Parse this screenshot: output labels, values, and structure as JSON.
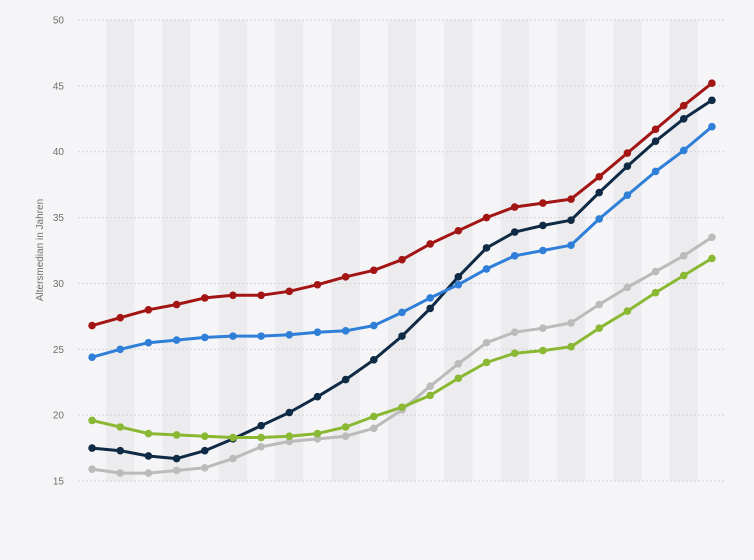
{
  "chart_data": {
    "type": "line",
    "title": "",
    "xlabel": "",
    "ylabel": "Altersmedian in Jahren",
    "ylim": [
      15,
      50
    ],
    "yticks": [
      15,
      20,
      25,
      30,
      35,
      40,
      45,
      50
    ],
    "x": [
      1,
      2,
      3,
      4,
      5,
      6,
      7,
      8,
      9,
      10,
      11,
      12,
      13,
      14,
      15,
      16,
      17,
      18,
      19,
      20,
      21,
      22,
      23
    ],
    "grid": true,
    "legend": "none",
    "series": [
      {
        "color": "#a31515",
        "values": [
          26.8,
          27.4,
          28.0,
          28.4,
          28.9,
          29.1,
          29.1,
          29.4,
          29.9,
          30.5,
          31.0,
          31.8,
          33.0,
          34.0,
          35.0,
          35.8,
          36.1,
          36.4,
          38.1,
          39.9,
          41.7,
          43.5,
          45.2
        ]
      },
      {
        "color": "#0f2a44",
        "values": [
          17.5,
          17.3,
          16.9,
          16.7,
          17.3,
          18.2,
          19.2,
          20.2,
          21.4,
          22.7,
          24.2,
          26.0,
          28.1,
          30.5,
          32.7,
          33.9,
          34.4,
          34.8,
          36.9,
          38.9,
          40.8,
          42.5,
          43.9
        ]
      },
      {
        "color": "#2f7fd9",
        "values": [
          24.4,
          25.0,
          25.5,
          25.7,
          25.9,
          26.0,
          26.0,
          26.1,
          26.3,
          26.4,
          26.8,
          27.8,
          28.9,
          29.9,
          31.1,
          32.1,
          32.5,
          32.9,
          34.9,
          36.7,
          38.5,
          40.1,
          41.9
        ]
      },
      {
        "color": "#bbbbbb",
        "values": [
          15.9,
          15.6,
          15.6,
          15.8,
          16.0,
          16.7,
          17.6,
          18.0,
          18.2,
          18.4,
          19.0,
          20.4,
          22.2,
          23.9,
          25.5,
          26.3,
          26.6,
          27.0,
          28.4,
          29.7,
          30.9,
          32.1,
          33.5
        ]
      },
      {
        "color": "#8ab832",
        "values": [
          19.6,
          19.1,
          18.6,
          18.5,
          18.4,
          18.3,
          18.3,
          18.4,
          18.6,
          19.1,
          19.9,
          20.6,
          21.5,
          22.8,
          24.0,
          24.7,
          24.9,
          25.2,
          26.6,
          27.9,
          29.3,
          30.6,
          31.9
        ]
      }
    ]
  }
}
